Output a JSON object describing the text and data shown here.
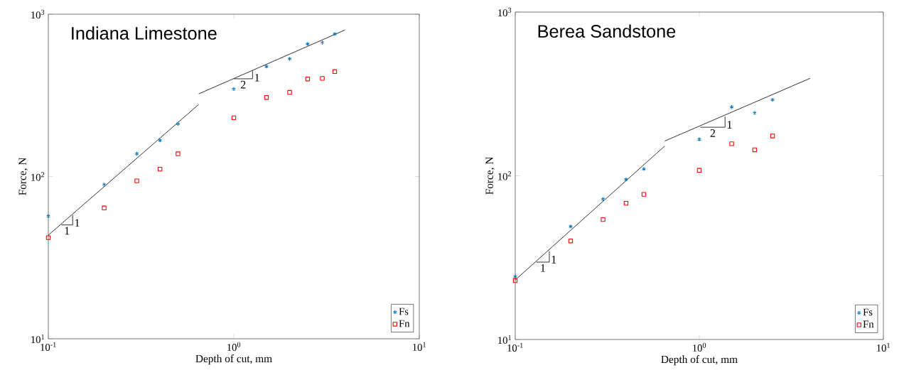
{
  "chart_data": [
    {
      "type": "scatter",
      "title": "Indiana Limestone",
      "xlabel": "Depth of cut, mm",
      "ylabel": "Force, N",
      "log": "xy",
      "xlim": [
        0.1,
        10
      ],
      "ylim": [
        10,
        1000
      ],
      "xticks": [
        {
          "value": 0.1,
          "label": "10$^{-1}$"
        },
        {
          "value": 1,
          "label": "10$^{0}$"
        },
        {
          "value": 10,
          "label": "10$^{1}$"
        }
      ],
      "yticks": [
        {
          "value": 10,
          "label": "10$^{1}$"
        },
        {
          "value": 100,
          "label": "10$^{2}$"
        },
        {
          "value": 1000,
          "label": "10$^{3}$"
        }
      ],
      "legend": "bottom right",
      "x": [
        0.1,
        0.2,
        0.3,
        0.4,
        0.5,
        1.0,
        1.5,
        2.0,
        2.5,
        3.0,
        3.5
      ],
      "series": [
        {
          "name": "Fs",
          "color": "#0072bd",
          "marker": "cross",
          "values": [
            57,
            89,
            138,
            167,
            211,
            346,
            476,
            531,
            656,
            668,
            755
          ]
        },
        {
          "name": "Fn",
          "color": "#ff0000",
          "marker": "square",
          "values": [
            42,
            64,
            94,
            111,
            138,
            230,
            307,
            330,
            399,
            402,
            443
          ]
        },
        {
          "type": "line",
          "color": "#000000",
          "marker": "none",
          "x": [
            0.1,
            0.647
          ],
          "values": [
            43.5,
            278
          ]
        },
        {
          "type": "line",
          "color": "#000000",
          "marker": "none",
          "x": [
            0.647,
            3.98
          ],
          "values": [
            323,
            800
          ]
        },
        {
          "type": "line",
          "color": "#000000",
          "marker": "none",
          "x": [
            0.1174,
            0.1353,
            0.1353
          ],
          "values": [
            50.3,
            50.3,
            57.8
          ]
        },
        {
          "type": "line",
          "color": "#000000",
          "marker": "none",
          "x": [
            1.0,
            1.262,
            1.262
          ],
          "values": [
            400,
            400,
            449
          ]
        }
      ],
      "annotations": [
        "1",
        "1",
        "1",
        "2"
      ]
    },
    {
      "type": "scatter",
      "title": "Berea Sandstone",
      "xlabel": "Depth of cut, mm",
      "ylabel": "Force, N",
      "log": "xy",
      "xlim": [
        0.1,
        10
      ],
      "ylim": [
        10,
        1000
      ],
      "xticks": [
        {
          "value": 0.1,
          "label": "10$^{-1}$"
        },
        {
          "value": 1,
          "label": "10$^{0}$"
        },
        {
          "value": 10,
          "label": "10$^{1}$"
        }
      ],
      "yticks": [
        {
          "value": 10,
          "label": "10$^{1}$"
        },
        {
          "value": 100,
          "label": "10$^{2}$"
        },
        {
          "value": 1000,
          "label": "10$^{3}$"
        }
      ],
      "legend": "bottom right",
      "x": [
        0.1,
        0.2,
        0.3,
        0.4,
        0.5,
        1.0,
        1.5,
        2.0,
        2.5
      ],
      "series": [
        {
          "name": "Fs",
          "color": "#0072bd",
          "marker": "cross",
          "values": [
            24.2,
            49,
            72,
            95,
            110,
            167,
            263,
            242,
            291
          ]
        },
        {
          "name": "Fn",
          "color": "#ff0000",
          "marker": "square",
          "values": [
            22.9,
            40,
            54,
            68,
            77,
            108,
            157,
            144,
            175
          ]
        },
        {
          "type": "line",
          "color": "#000000",
          "marker": "none",
          "x": [
            0.1,
            0.649
          ],
          "values": [
            23.1,
            152
          ]
        },
        {
          "type": "line",
          "color": "#000000",
          "marker": "none",
          "x": [
            0.649,
            4.0
          ],
          "values": [
            163,
            394
          ]
        },
        {
          "type": "line",
          "color": "#000000",
          "marker": "none",
          "x": [
            0.1303,
            0.1532,
            0.1532
          ],
          "values": [
            29.7,
            29.7,
            34.6
          ]
        },
        {
          "type": "line",
          "color": "#000000",
          "marker": "none",
          "x": [
            1.015,
            1.38,
            1.38
          ],
          "values": [
            198,
            198,
            230
          ]
        }
      ],
      "annotations": [
        "1",
        "1",
        "1",
        "2"
      ]
    }
  ]
}
